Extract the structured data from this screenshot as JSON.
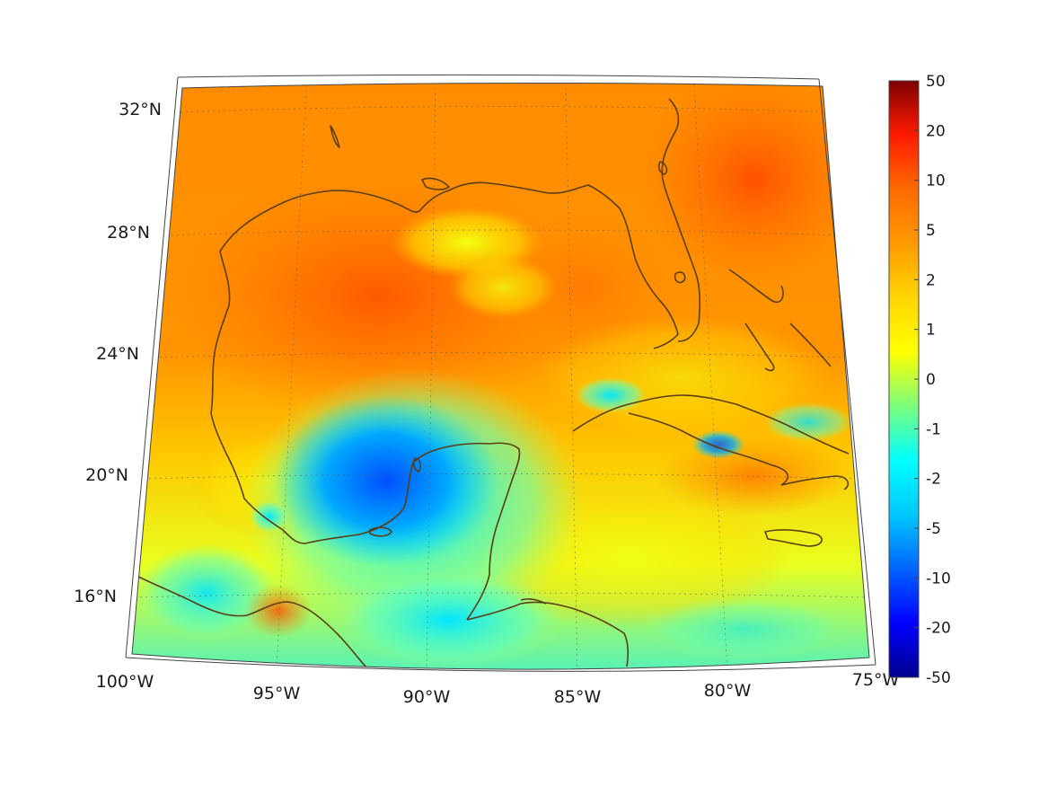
{
  "map": {
    "lat_labels": [
      "32°N",
      "28°N",
      "24°N",
      "20°N",
      "16°N"
    ],
    "lon_labels": [
      "100°W",
      "95°W",
      "90°W",
      "85°W",
      "80°W",
      "75°W"
    ],
    "lon_range": [
      -100,
      -75
    ],
    "lat_range": [
      14,
      33
    ]
  },
  "colorbar": {
    "tick_labels": [
      "50",
      "20",
      "10",
      "5",
      "2",
      "1",
      "0",
      "-1",
      "-2",
      "-5",
      "-10",
      "-20",
      "-50"
    ],
    "colors": [
      "#7f0000",
      "#ff1a00",
      "#ff6a00",
      "#ff9a00",
      "#ffd600",
      "#ffff00",
      "#7cff7c",
      "#00ffff",
      "#00c8ff",
      "#0064ff",
      "#0000ff",
      "#00008f"
    ]
  }
}
